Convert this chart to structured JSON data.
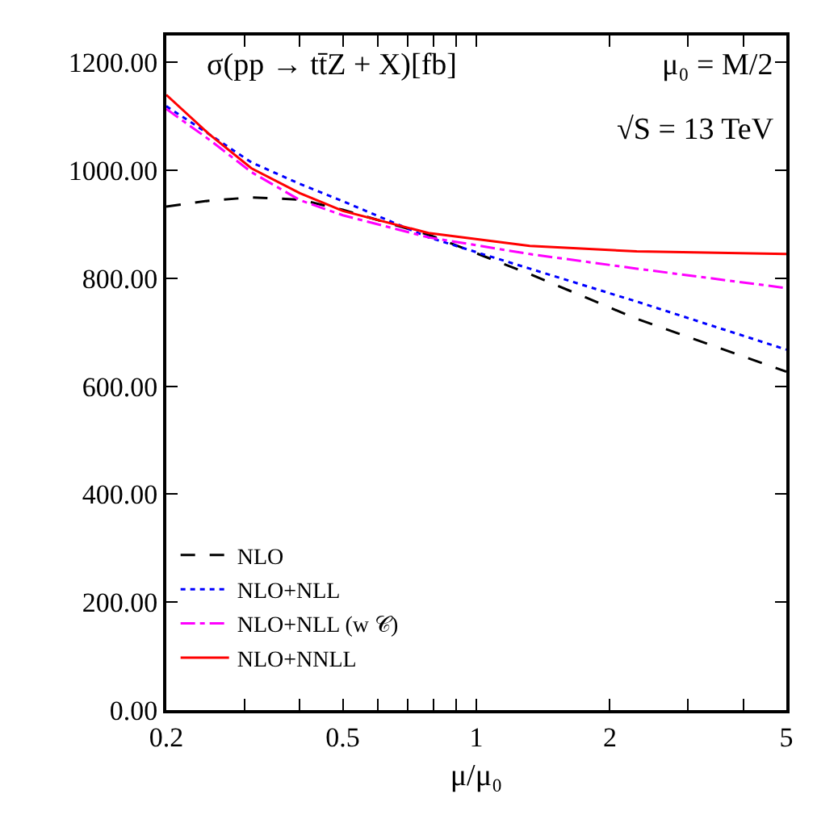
{
  "chart_data": {
    "type": "line",
    "xlabel": "μ/μ₀",
    "log": "x",
    "xlim": [
      0.2,
      5
    ],
    "ylim": [
      0,
      1250
    ],
    "xticks": [
      0.2,
      {
        "value": 0.3,
        "label": null
      },
      {
        "value": 0.4,
        "label": null
      },
      0.5,
      {
        "value": 0.6,
        "label": null
      },
      {
        "value": 0.7,
        "label": null
      },
      {
        "value": 0.8,
        "label": null
      },
      {
        "value": 0.9,
        "label": null
      },
      1,
      2,
      {
        "value": 3,
        "label": null
      },
      {
        "value": 4,
        "label": null
      },
      5
    ],
    "yticks": [
      {
        "value": 0,
        "label": "0.00"
      },
      {
        "value": 200,
        "label": "200.00"
      },
      {
        "value": 400,
        "label": "400.00"
      },
      {
        "value": 600,
        "label": "600.00"
      },
      {
        "value": 800,
        "label": "800.00"
      },
      {
        "value": 1000,
        "label": "1000.00"
      },
      {
        "value": 1200,
        "label": "1200.00"
      }
    ],
    "x": [
      0.2,
      0.25,
      0.311,
      0.4,
      0.5,
      0.78,
      1.32,
      2.3,
      5
    ],
    "grid": false,
    "legend": "bottom left",
    "marker": "none",
    "annotations": [
      "σ(pp → tt̄Z + X)[fb]",
      "μ₀ = M/2",
      "√S = 13 TeV"
    ],
    "series": [
      {
        "name": "NLO",
        "color": "#000000",
        "line_style": "dashed",
        "values": [
          933,
          944,
          950,
          946,
          927,
          881,
          808,
          725,
          627
        ]
      },
      {
        "name": "NLO+NLL",
        "color": "#0000ff",
        "line_style": "dotted",
        "values": [
          1119,
          1067,
          1015,
          975,
          943,
          876,
          818,
          757,
          668
        ]
      },
      {
        "name": "NLO+NLL (w 𝒞)",
        "color": "#ff00ff",
        "line_style": "dashdot",
        "values": [
          1114,
          1057,
          997,
          945,
          917,
          876,
          845,
          818,
          782
        ]
      },
      {
        "name": "NLO+NNLL",
        "color": "#ff0000",
        "line_style": "solid",
        "values": [
          1140,
          1067,
          1004,
          958,
          925,
          884,
          860,
          850,
          845
        ]
      }
    ]
  }
}
